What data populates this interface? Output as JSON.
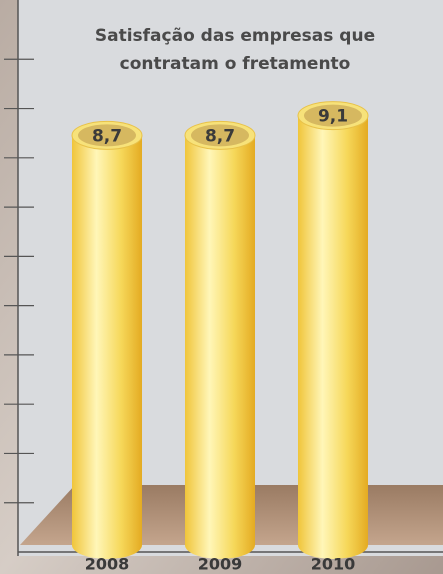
{
  "chart_data": {
    "type": "bar",
    "title": "Satisfação das empresas que contratam o fretamento",
    "categories": [
      "2008",
      "2009",
      "2010"
    ],
    "values": [
      8.7,
      8.7,
      9.1
    ],
    "value_labels": [
      "8,7",
      "8,7",
      "9,1"
    ],
    "color": "#f5d74a",
    "ylim": [
      0,
      11
    ],
    "yticks": [
      1,
      2,
      3,
      4,
      5,
      6,
      7,
      8,
      9,
      10
    ]
  }
}
